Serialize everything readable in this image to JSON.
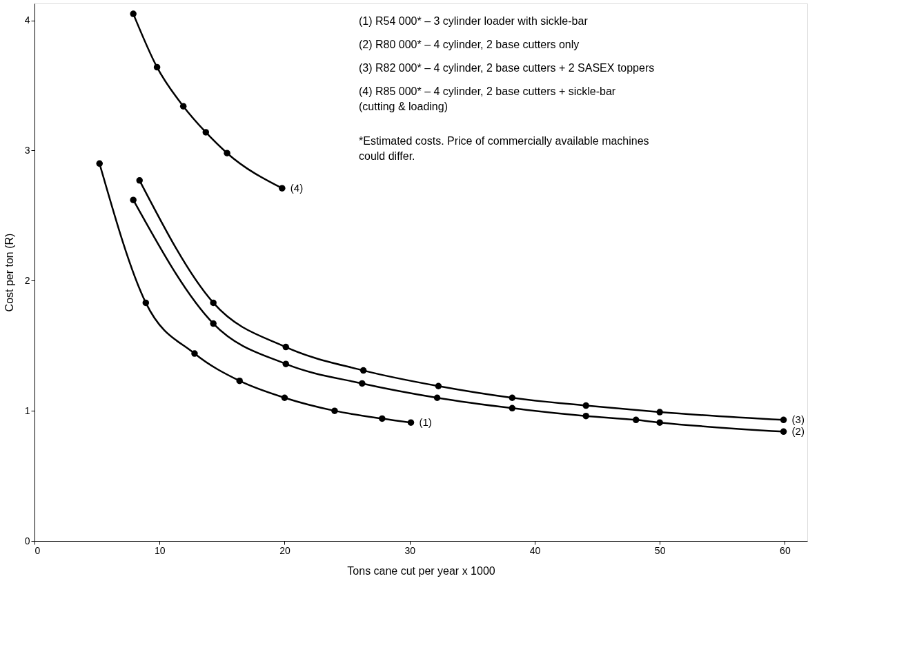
{
  "chart_data": {
    "type": "line",
    "xlabel": "Tons cane cut per year  x  1000",
    "ylabel": "Cost per ton (R)",
    "xlim": [
      0,
      61.8
    ],
    "ylim": [
      0,
      4.13
    ],
    "xticks": [
      0,
      10,
      20,
      30,
      40,
      50,
      60
    ],
    "yticks": [
      0,
      1,
      2,
      3,
      4
    ],
    "grid": false,
    "marker": "circle",
    "line_style": "solid",
    "series": [
      {
        "name": "(1)",
        "color": "#000000",
        "x": [
          5.2,
          8.9,
          12.8,
          16.4,
          20.0,
          24.0,
          27.8,
          30.1
        ],
        "values": [
          2.9,
          1.83,
          1.44,
          1.23,
          1.1,
          1.0,
          0.94,
          0.91
        ]
      },
      {
        "name": "(2)",
        "color": "#000000",
        "x": [
          7.9,
          14.3,
          20.1,
          26.2,
          32.2,
          38.2,
          44.1,
          48.1,
          50.0,
          59.9
        ],
        "values": [
          2.62,
          1.67,
          1.36,
          1.21,
          1.1,
          1.02,
          0.96,
          0.93,
          0.91,
          0.84
        ]
      },
      {
        "name": "(3)",
        "color": "#000000",
        "x": [
          8.4,
          14.3,
          20.1,
          26.3,
          32.3,
          38.2,
          44.1,
          50.0,
          59.9
        ],
        "values": [
          2.77,
          1.83,
          1.49,
          1.31,
          1.19,
          1.1,
          1.04,
          0.99,
          0.93
        ]
      },
      {
        "name": "(4)",
        "color": "#000000",
        "x": [
          7.9,
          9.8,
          11.9,
          13.7,
          15.4,
          19.8
        ],
        "values": [
          4.05,
          3.64,
          3.34,
          3.14,
          2.98,
          2.71
        ]
      }
    ],
    "annotations": [
      "(1)     R54 000*  –  3 cylinder loader with sickle-bar",
      "(2)     R80 000*  –  4 cylinder, 2 base cutters only",
      "(3)     R82 000*  –  4 cylinder, 2 base cutters + 2 SASEX toppers",
      "(4)     R85 000*  –  4 cylinder, 2 base cutters + sickle-bar\n                                (cutting & loading)",
      "*Estimated costs. Price of commercially available machines\n  could differ."
    ]
  }
}
